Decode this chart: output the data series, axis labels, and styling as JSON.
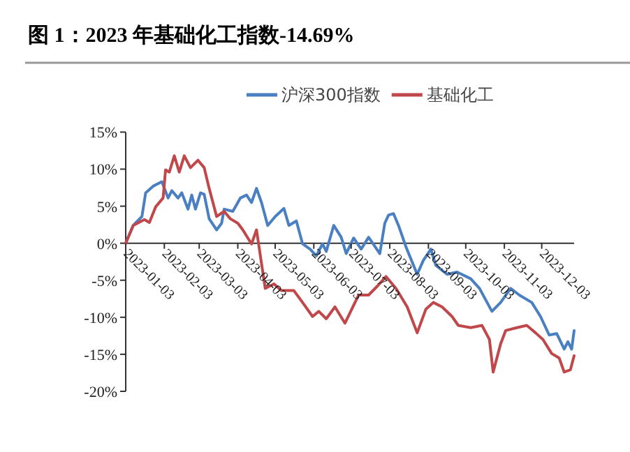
{
  "chart_data": {
    "type": "line",
    "title": "图 1：2023 年基础化工指数-14.69%",
    "legend": "top",
    "grid": false,
    "line_style": "solid",
    "marker": "none",
    "xlim": [
      "2023-01-03",
      "2023-12-29"
    ],
    "xticks": [
      "2023-01-03",
      "2023-02-03",
      "2023-03-03",
      "2023-04-03",
      "2023-05-03",
      "2023-06-03",
      "2023-07-03",
      "2023-08-03",
      "2023-09-03",
      "2023-10-03",
      "2023-11-03",
      "2023-12-03"
    ],
    "ylim": [
      -20,
      15
    ],
    "yticks": [
      {
        "value": -20,
        "label": "-20%"
      },
      {
        "value": -15,
        "label": "-15%"
      },
      {
        "value": -10,
        "label": "-10%"
      },
      {
        "value": -5,
        "label": "-5%"
      },
      {
        "value": 0,
        "label": "0%"
      },
      {
        "value": 5,
        "label": "5%"
      },
      {
        "value": 10,
        "label": "10%"
      },
      {
        "value": 15,
        "label": "15%"
      }
    ],
    "series": [
      {
        "name": "沪深300指数",
        "color": "#4a7fc1",
        "x": [
          "2023-01-03",
          "2023-01-09",
          "2023-01-16",
          "2023-01-19",
          "2023-01-25",
          "2023-02-01",
          "2023-02-06",
          "2023-02-09",
          "2023-02-14",
          "2023-02-17",
          "2023-02-22",
          "2023-02-25",
          "2023-02-28",
          "2023-03-04",
          "2023-03-07",
          "2023-03-11",
          "2023-03-17",
          "2023-03-21",
          "2023-03-23",
          "2023-03-30",
          "2023-04-05",
          "2023-04-10",
          "2023-04-14",
          "2023-04-18",
          "2023-04-22",
          "2023-04-27",
          "2023-05-03",
          "2023-05-10",
          "2023-05-14",
          "2023-05-20",
          "2023-05-25",
          "2023-05-31",
          "2023-06-05",
          "2023-06-10",
          "2023-06-13",
          "2023-06-19",
          "2023-06-25",
          "2023-06-29",
          "2023-07-05",
          "2023-07-11",
          "2023-07-17",
          "2023-07-26",
          "2023-07-30",
          "2023-08-02",
          "2023-08-06",
          "2023-08-10",
          "2023-08-16",
          "2023-08-25",
          "2023-08-30",
          "2023-09-05",
          "2023-09-09",
          "2023-09-18",
          "2023-09-26",
          "2023-10-07",
          "2023-10-14",
          "2023-10-24",
          "2023-10-31",
          "2023-11-08",
          "2023-11-15",
          "2023-11-25",
          "2023-12-02",
          "2023-12-09",
          "2023-12-15",
          "2023-12-21",
          "2023-12-24",
          "2023-12-27",
          "2023-12-29"
        ],
        "values": [
          0,
          2.4,
          3.6,
          6.8,
          7.7,
          8.3,
          6.1,
          7.1,
          6.1,
          6.8,
          4.6,
          6.5,
          4.6,
          6.8,
          6.6,
          3.3,
          1.8,
          2.7,
          4.6,
          4.3,
          6.1,
          6.5,
          5.5,
          7.4,
          5.5,
          2.4,
          3.6,
          4.7,
          2.4,
          3.0,
          -0.1,
          -0.8,
          -1.7,
          -0.1,
          -1.1,
          2.4,
          0.8,
          -1.4,
          0.7,
          -0.8,
          0.8,
          -1.4,
          2.7,
          3.8,
          4.0,
          2.4,
          -0.5,
          -4.2,
          -2.3,
          -0.8,
          -3.0,
          -4.2,
          -3.9,
          -4.8,
          -6.1,
          -9.2,
          -8.0,
          -6.1,
          -7.0,
          -8.0,
          -9.9,
          -12.4,
          -12.2,
          -14.3,
          -13.3,
          -14.3,
          -11.8
        ]
      },
      {
        "name": "基础化工",
        "color": "#c0474a",
        "x": [
          "2023-01-03",
          "2023-01-09",
          "2023-01-18",
          "2023-01-22",
          "2023-01-27",
          "2023-02-02",
          "2023-02-04",
          "2023-02-07",
          "2023-02-11",
          "2023-02-15",
          "2023-02-19",
          "2023-02-24",
          "2023-03-02",
          "2023-03-07",
          "2023-03-11",
          "2023-03-17",
          "2023-03-23",
          "2023-03-28",
          "2023-04-03",
          "2023-04-07",
          "2023-04-14",
          "2023-04-18",
          "2023-04-25",
          "2023-05-02",
          "2023-05-08",
          "2023-05-18",
          "2023-05-25",
          "2023-06-02",
          "2023-06-07",
          "2023-06-13",
          "2023-06-20",
          "2023-06-28",
          "2023-07-09",
          "2023-07-17",
          "2023-07-24",
          "2023-07-31",
          "2023-08-08",
          "2023-08-17",
          "2023-08-25",
          "2023-09-01",
          "2023-09-07",
          "2023-09-14",
          "2023-09-22",
          "2023-09-27",
          "2023-10-07",
          "2023-10-16",
          "2023-10-22",
          "2023-10-25",
          "2023-10-31",
          "2023-11-04",
          "2023-11-13",
          "2023-11-21",
          "2023-11-28",
          "2023-12-04",
          "2023-12-11",
          "2023-12-17",
          "2023-12-21",
          "2023-12-26",
          "2023-12-29"
        ],
        "values": [
          0,
          2.4,
          3.2,
          2.8,
          4.9,
          6.1,
          9.9,
          9.6,
          11.8,
          9.6,
          11.8,
          10.2,
          11.2,
          10.2,
          7.4,
          3.6,
          4.3,
          3.3,
          2.7,
          1.8,
          -0.1,
          1.8,
          -6.1,
          -5.5,
          -6.4,
          -6.4,
          -8.0,
          -9.9,
          -9.2,
          -10.2,
          -8.6,
          -10.8,
          -7.0,
          -7.0,
          -5.8,
          -4.5,
          -6.1,
          -8.6,
          -12.1,
          -8.9,
          -8.0,
          -8.6,
          -9.9,
          -11.1,
          -11.4,
          -11.1,
          -13.0,
          -17.4,
          -13.6,
          -11.8,
          -11.4,
          -11.1,
          -12.1,
          -13.0,
          -14.9,
          -15.5,
          -17.4,
          -17.1,
          -15.2
        ]
      }
    ]
  }
}
